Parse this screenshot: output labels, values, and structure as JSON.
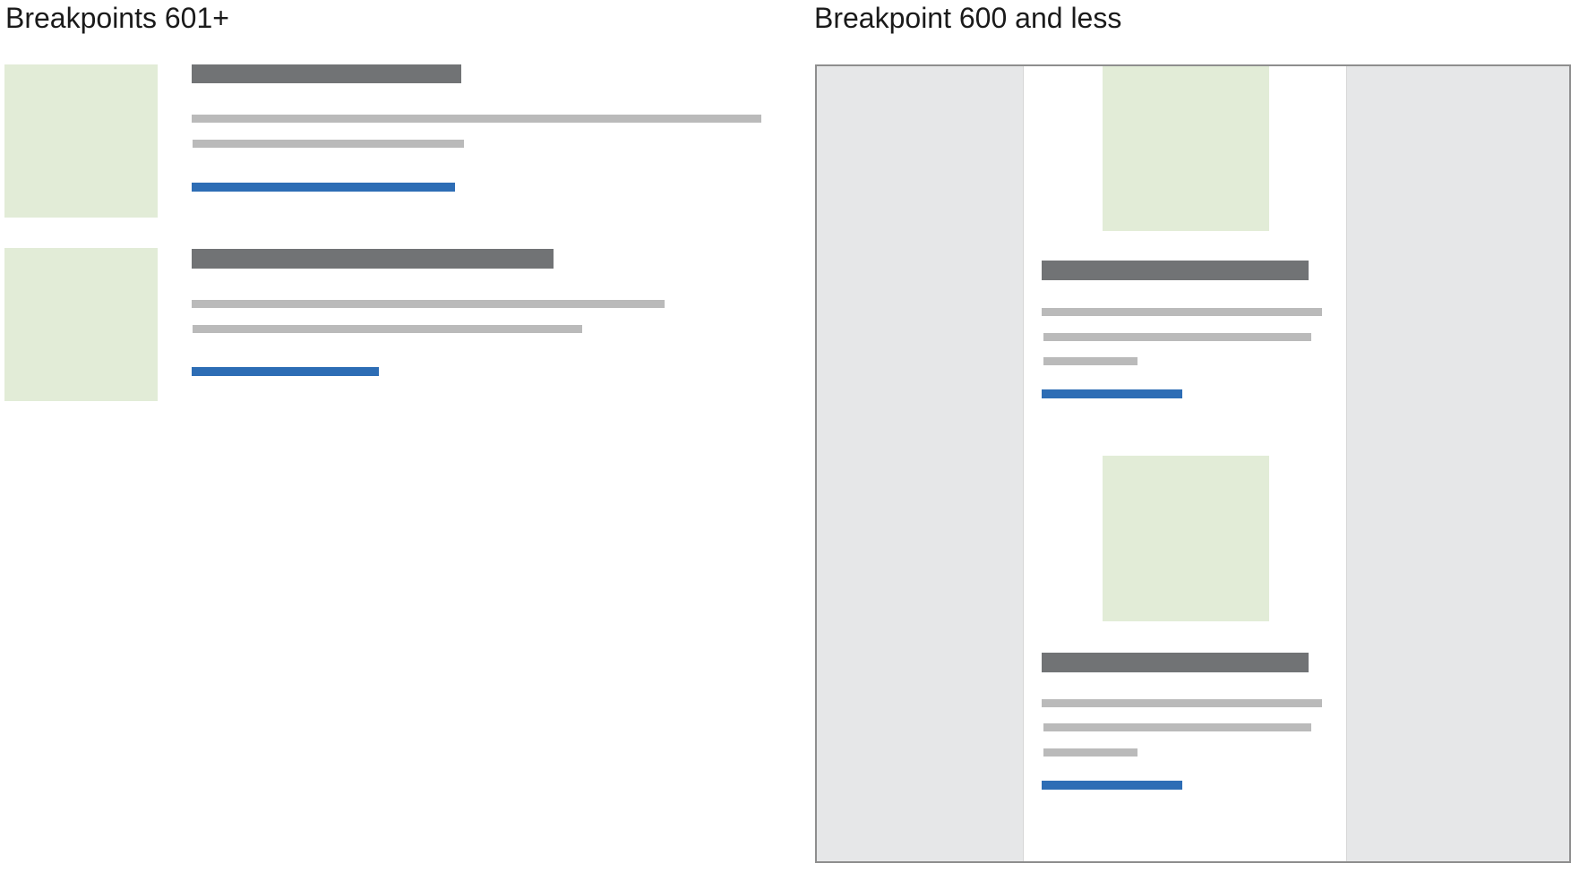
{
  "headings": {
    "desktop": "Breakpoints 601+",
    "mobile": "Breakpoint 600 and less"
  },
  "colors": {
    "image_placeholder": "#e2ecd7",
    "title_bar": "#717375",
    "text_line": "#bababa",
    "link": "#2d6db5",
    "frame_border": "#8e8e8e",
    "frame_background": "#e6e7e8",
    "column_background": "#ffffff"
  },
  "desktop_cards": [
    {
      "image": "image-placeholder",
      "text_lines": 2,
      "link": "link-placeholder"
    },
    {
      "image": "image-placeholder",
      "text_lines": 2,
      "link": "link-placeholder"
    }
  ],
  "mobile_cards": [
    {
      "image": "image-placeholder",
      "text_lines": 3,
      "link": "link-placeholder"
    },
    {
      "image": "image-placeholder",
      "text_lines": 3,
      "link": "link-placeholder"
    }
  ]
}
